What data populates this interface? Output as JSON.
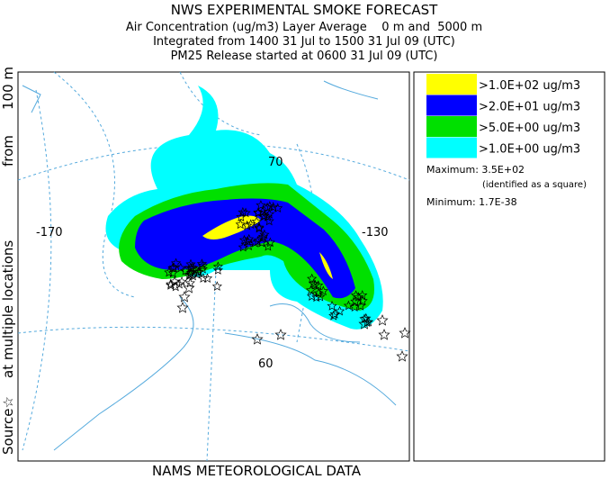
{
  "header": {
    "title": "NWS EXPERIMENTAL SMOKE FORECAST",
    "lines": [
      "Air Concentration (ug/m3) Layer Average    0 m and  5000 m",
      "Integrated from 1400 31 Jul to 1500 31 Jul 09 (UTC)",
      "PM25 Release started at 0600 31 Jul 09 (UTC)"
    ]
  },
  "side_label": {
    "source": "Source☆",
    "locations": "at multiple locations",
    "from": "from",
    "height": "100 m"
  },
  "footer": "NAMS METEOROLOGICAL DATA",
  "map": {
    "labels": [
      "-170",
      "-130",
      "70",
      "60"
    ]
  },
  "legend": {
    "items": [
      {
        "label": ">1.0E+02 ug/m3",
        "color": "#ffff00"
      },
      {
        "label": ">2.0E+01 ug/m3",
        "color": "#0000ff"
      },
      {
        "label": ">5.0E+00 ug/m3",
        "color": "#00e000"
      },
      {
        "label": ">1.0E+00 ug/m3",
        "color": "#00ffff"
      }
    ],
    "maximum": "Maximum: 3.5E+02",
    "maximum_note": "(identified as a square)",
    "minimum": "Minimum: 1.7E-38"
  }
}
